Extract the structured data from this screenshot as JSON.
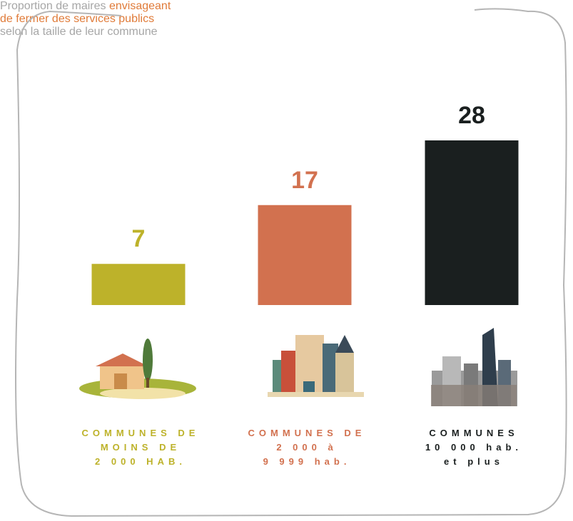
{
  "chart_data": {
    "type": "bar",
    "title_lines": [
      [
        {
          "text": "Proportion de maires ",
          "color": "#a6a6a6"
        },
        {
          "text": "envisageant",
          "color": "#e07b39"
        }
      ],
      [
        {
          "text": "de fermer des services publics",
          "color": "#e07b39"
        }
      ],
      [
        {
          "text": "selon la taille de leur commune",
          "color": "#a6a6a6"
        }
      ]
    ],
    "categories": [
      "COMMUNES DE\nMOINS DE\n2 000 HAB.",
      "COMMUNES DE\n2 000 à\n9 999 hab.",
      "COMMUNES\n10 000 hab.\net plus"
    ],
    "values": [
      7,
      17,
      28
    ],
    "colors": [
      "#bdb22a",
      "#d2714f",
      "#1a1f1f"
    ]
  }
}
